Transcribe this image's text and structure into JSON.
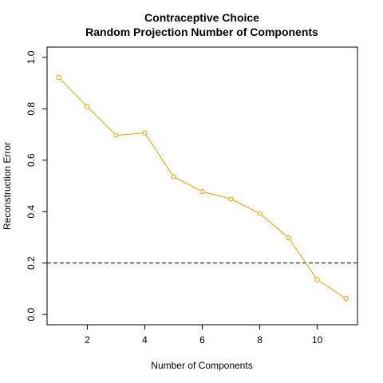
{
  "chart_data": {
    "type": "line",
    "title": "Contraceptive Choice",
    "subtitle": "Random Projection Number of Components",
    "xlabel": "Number of Components",
    "ylabel": "Reconstruction Error",
    "x": [
      1,
      2,
      3,
      4,
      5,
      6,
      7,
      8,
      9,
      10,
      11
    ],
    "series": [
      {
        "values": [
          0.922,
          0.808,
          0.697,
          0.706,
          0.536,
          0.478,
          0.449,
          0.393,
          0.298,
          0.135,
          0.062
        ],
        "color": "#E69F00",
        "marker": "open-circle"
      }
    ],
    "xlim": [
      0.6,
      11.4
    ],
    "ylim": [
      -0.04,
      1.04
    ],
    "xticks": [
      2,
      4,
      6,
      8,
      10
    ],
    "yticks": [
      0.0,
      0.2,
      0.4,
      0.6,
      0.8,
      1.0
    ],
    "xtick_labels": [
      "2",
      "4",
      "6",
      "8",
      "10"
    ],
    "ytick_labels": [
      "0.0",
      "0.2",
      "0.4",
      "0.6",
      "0.8",
      "1.0"
    ],
    "reference_line": {
      "y": 0.2,
      "style": "dashed",
      "color": "#000000"
    },
    "grid": false,
    "legend": "none"
  }
}
